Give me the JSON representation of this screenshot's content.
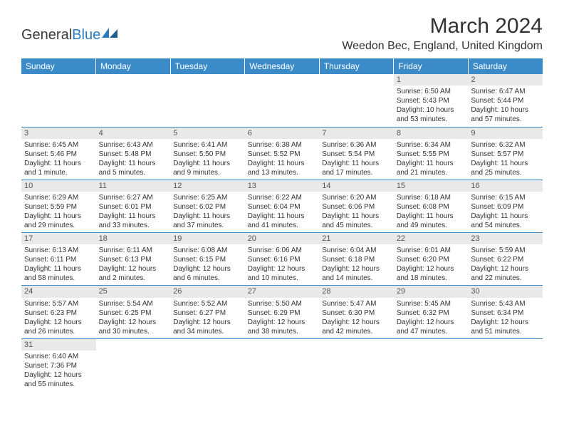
{
  "logo": {
    "text1": "General",
    "text2": "Blue"
  },
  "title": "March 2024",
  "location": "Weedon Bec, England, United Kingdom",
  "colors": {
    "header_bg": "#3b8bc9",
    "header_fg": "#ffffff",
    "daynum_bg": "#e9e9e9",
    "divider": "#3b8bc9",
    "text": "#333333"
  },
  "fonts": {
    "title_size_pt": 22,
    "location_size_pt": 12,
    "dayheader_size_pt": 9,
    "cell_size_pt": 7.5
  },
  "day_headers": [
    "Sunday",
    "Monday",
    "Tuesday",
    "Wednesday",
    "Thursday",
    "Friday",
    "Saturday"
  ],
  "weeks": [
    [
      {
        "n": "",
        "sr": "",
        "ss": "",
        "d1": "",
        "d2": ""
      },
      {
        "n": "",
        "sr": "",
        "ss": "",
        "d1": "",
        "d2": ""
      },
      {
        "n": "",
        "sr": "",
        "ss": "",
        "d1": "",
        "d2": ""
      },
      {
        "n": "",
        "sr": "",
        "ss": "",
        "d1": "",
        "d2": ""
      },
      {
        "n": "",
        "sr": "",
        "ss": "",
        "d1": "",
        "d2": ""
      },
      {
        "n": "1",
        "sr": "Sunrise: 6:50 AM",
        "ss": "Sunset: 5:43 PM",
        "d1": "Daylight: 10 hours",
        "d2": "and 53 minutes."
      },
      {
        "n": "2",
        "sr": "Sunrise: 6:47 AM",
        "ss": "Sunset: 5:44 PM",
        "d1": "Daylight: 10 hours",
        "d2": "and 57 minutes."
      }
    ],
    [
      {
        "n": "3",
        "sr": "Sunrise: 6:45 AM",
        "ss": "Sunset: 5:46 PM",
        "d1": "Daylight: 11 hours",
        "d2": "and 1 minute."
      },
      {
        "n": "4",
        "sr": "Sunrise: 6:43 AM",
        "ss": "Sunset: 5:48 PM",
        "d1": "Daylight: 11 hours",
        "d2": "and 5 minutes."
      },
      {
        "n": "5",
        "sr": "Sunrise: 6:41 AM",
        "ss": "Sunset: 5:50 PM",
        "d1": "Daylight: 11 hours",
        "d2": "and 9 minutes."
      },
      {
        "n": "6",
        "sr": "Sunrise: 6:38 AM",
        "ss": "Sunset: 5:52 PM",
        "d1": "Daylight: 11 hours",
        "d2": "and 13 minutes."
      },
      {
        "n": "7",
        "sr": "Sunrise: 6:36 AM",
        "ss": "Sunset: 5:54 PM",
        "d1": "Daylight: 11 hours",
        "d2": "and 17 minutes."
      },
      {
        "n": "8",
        "sr": "Sunrise: 6:34 AM",
        "ss": "Sunset: 5:55 PM",
        "d1": "Daylight: 11 hours",
        "d2": "and 21 minutes."
      },
      {
        "n": "9",
        "sr": "Sunrise: 6:32 AM",
        "ss": "Sunset: 5:57 PM",
        "d1": "Daylight: 11 hours",
        "d2": "and 25 minutes."
      }
    ],
    [
      {
        "n": "10",
        "sr": "Sunrise: 6:29 AM",
        "ss": "Sunset: 5:59 PM",
        "d1": "Daylight: 11 hours",
        "d2": "and 29 minutes."
      },
      {
        "n": "11",
        "sr": "Sunrise: 6:27 AM",
        "ss": "Sunset: 6:01 PM",
        "d1": "Daylight: 11 hours",
        "d2": "and 33 minutes."
      },
      {
        "n": "12",
        "sr": "Sunrise: 6:25 AM",
        "ss": "Sunset: 6:02 PM",
        "d1": "Daylight: 11 hours",
        "d2": "and 37 minutes."
      },
      {
        "n": "13",
        "sr": "Sunrise: 6:22 AM",
        "ss": "Sunset: 6:04 PM",
        "d1": "Daylight: 11 hours",
        "d2": "and 41 minutes."
      },
      {
        "n": "14",
        "sr": "Sunrise: 6:20 AM",
        "ss": "Sunset: 6:06 PM",
        "d1": "Daylight: 11 hours",
        "d2": "and 45 minutes."
      },
      {
        "n": "15",
        "sr": "Sunrise: 6:18 AM",
        "ss": "Sunset: 6:08 PM",
        "d1": "Daylight: 11 hours",
        "d2": "and 49 minutes."
      },
      {
        "n": "16",
        "sr": "Sunrise: 6:15 AM",
        "ss": "Sunset: 6:09 PM",
        "d1": "Daylight: 11 hours",
        "d2": "and 54 minutes."
      }
    ],
    [
      {
        "n": "17",
        "sr": "Sunrise: 6:13 AM",
        "ss": "Sunset: 6:11 PM",
        "d1": "Daylight: 11 hours",
        "d2": "and 58 minutes."
      },
      {
        "n": "18",
        "sr": "Sunrise: 6:11 AM",
        "ss": "Sunset: 6:13 PM",
        "d1": "Daylight: 12 hours",
        "d2": "and 2 minutes."
      },
      {
        "n": "19",
        "sr": "Sunrise: 6:08 AM",
        "ss": "Sunset: 6:15 PM",
        "d1": "Daylight: 12 hours",
        "d2": "and 6 minutes."
      },
      {
        "n": "20",
        "sr": "Sunrise: 6:06 AM",
        "ss": "Sunset: 6:16 PM",
        "d1": "Daylight: 12 hours",
        "d2": "and 10 minutes."
      },
      {
        "n": "21",
        "sr": "Sunrise: 6:04 AM",
        "ss": "Sunset: 6:18 PM",
        "d1": "Daylight: 12 hours",
        "d2": "and 14 minutes."
      },
      {
        "n": "22",
        "sr": "Sunrise: 6:01 AM",
        "ss": "Sunset: 6:20 PM",
        "d1": "Daylight: 12 hours",
        "d2": "and 18 minutes."
      },
      {
        "n": "23",
        "sr": "Sunrise: 5:59 AM",
        "ss": "Sunset: 6:22 PM",
        "d1": "Daylight: 12 hours",
        "d2": "and 22 minutes."
      }
    ],
    [
      {
        "n": "24",
        "sr": "Sunrise: 5:57 AM",
        "ss": "Sunset: 6:23 PM",
        "d1": "Daylight: 12 hours",
        "d2": "and 26 minutes."
      },
      {
        "n": "25",
        "sr": "Sunrise: 5:54 AM",
        "ss": "Sunset: 6:25 PM",
        "d1": "Daylight: 12 hours",
        "d2": "and 30 minutes."
      },
      {
        "n": "26",
        "sr": "Sunrise: 5:52 AM",
        "ss": "Sunset: 6:27 PM",
        "d1": "Daylight: 12 hours",
        "d2": "and 34 minutes."
      },
      {
        "n": "27",
        "sr": "Sunrise: 5:50 AM",
        "ss": "Sunset: 6:29 PM",
        "d1": "Daylight: 12 hours",
        "d2": "and 38 minutes."
      },
      {
        "n": "28",
        "sr": "Sunrise: 5:47 AM",
        "ss": "Sunset: 6:30 PM",
        "d1": "Daylight: 12 hours",
        "d2": "and 42 minutes."
      },
      {
        "n": "29",
        "sr": "Sunrise: 5:45 AM",
        "ss": "Sunset: 6:32 PM",
        "d1": "Daylight: 12 hours",
        "d2": "and 47 minutes."
      },
      {
        "n": "30",
        "sr": "Sunrise: 5:43 AM",
        "ss": "Sunset: 6:34 PM",
        "d1": "Daylight: 12 hours",
        "d2": "and 51 minutes."
      }
    ],
    [
      {
        "n": "31",
        "sr": "Sunrise: 6:40 AM",
        "ss": "Sunset: 7:36 PM",
        "d1": "Daylight: 12 hours",
        "d2": "and 55 minutes."
      },
      {
        "n": "",
        "sr": "",
        "ss": "",
        "d1": "",
        "d2": ""
      },
      {
        "n": "",
        "sr": "",
        "ss": "",
        "d1": "",
        "d2": ""
      },
      {
        "n": "",
        "sr": "",
        "ss": "",
        "d1": "",
        "d2": ""
      },
      {
        "n": "",
        "sr": "",
        "ss": "",
        "d1": "",
        "d2": ""
      },
      {
        "n": "",
        "sr": "",
        "ss": "",
        "d1": "",
        "d2": ""
      },
      {
        "n": "",
        "sr": "",
        "ss": "",
        "d1": "",
        "d2": ""
      }
    ]
  ]
}
